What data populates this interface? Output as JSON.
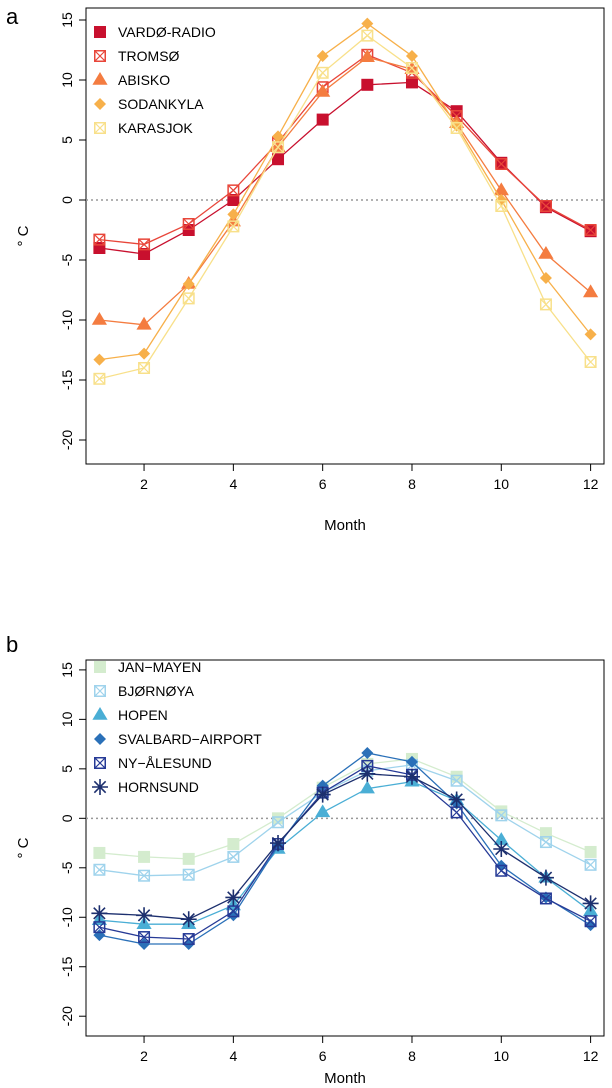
{
  "chart_data": [
    {
      "type": "line",
      "panel_label": "a",
      "xlabel": "Month",
      "ylabel": "° C",
      "xlim": [
        0.7,
        12.3
      ],
      "ylim": [
        -22,
        16
      ],
      "xticks": [
        2,
        4,
        6,
        8,
        10,
        12
      ],
      "yticks": [
        -20,
        -15,
        -10,
        -5,
        0,
        5,
        10,
        15
      ],
      "zero_line": {
        "y": 0,
        "style": "dotted",
        "color": "#999999"
      },
      "legend_position": "top-left",
      "x": [
        1,
        2,
        3,
        4,
        5,
        6,
        7,
        8,
        9,
        10,
        11,
        12
      ],
      "series": [
        {
          "name": "VARDØ-RADIO",
          "color": "#c8102e",
          "marker": "square",
          "values": [
            -4.0,
            -4.5,
            -2.5,
            0.0,
            3.4,
            6.7,
            9.6,
            9.8,
            7.4,
            3.1,
            -0.6,
            -2.6
          ]
        },
        {
          "name": "TROMSØ",
          "color": "#e8463a",
          "marker": "square-x",
          "values": [
            -3.3,
            -3.7,
            -2.0,
            0.8,
            4.8,
            9.4,
            12.1,
            10.6,
            7.0,
            3.0,
            -0.5,
            -2.5
          ]
        },
        {
          "name": "ABISKO",
          "color": "#f47c40",
          "marker": "triangle",
          "values": [
            -10.0,
            -10.4,
            -7.0,
            -1.8,
            4.4,
            9.0,
            11.9,
            10.9,
            6.4,
            0.8,
            -4.5,
            -7.7
          ]
        },
        {
          "name": "SODANKYLA",
          "color": "#f7b04a",
          "marker": "diamond",
          "values": [
            -13.3,
            -12.8,
            -7.0,
            -1.2,
            5.3,
            12.0,
            14.7,
            12.0,
            6.2,
            0.0,
            -6.5,
            -11.2
          ]
        },
        {
          "name": "KARASJOK",
          "color": "#f8e08a",
          "marker": "square-x",
          "values": [
            -14.9,
            -14.0,
            -8.2,
            -2.2,
            4.4,
            10.6,
            13.7,
            11.0,
            6.0,
            -0.5,
            -8.7,
            -13.5
          ]
        }
      ]
    },
    {
      "type": "line",
      "panel_label": "b",
      "xlabel": "Month",
      "ylabel": "° C",
      "xlim": [
        0.7,
        12.3
      ],
      "ylim": [
        -22,
        16
      ],
      "xticks": [
        2,
        4,
        6,
        8,
        10,
        12
      ],
      "yticks": [
        -20,
        -15,
        -10,
        -5,
        0,
        5,
        10,
        15
      ],
      "zero_line": {
        "y": 0,
        "style": "dotted",
        "color": "#999999"
      },
      "legend_position": "top-left",
      "x": [
        1,
        2,
        3,
        4,
        5,
        6,
        7,
        8,
        9,
        10,
        11,
        12
      ],
      "series": [
        {
          "name": "JAN−MAYEN",
          "color": "#d4ecce",
          "marker": "square",
          "values": [
            -3.5,
            -3.9,
            -4.1,
            -2.6,
            0.0,
            3.1,
            5.5,
            6.0,
            4.2,
            0.7,
            -1.5,
            -3.4
          ]
        },
        {
          "name": "BJØRNØYA",
          "color": "#9fd3ec",
          "marker": "square-x",
          "values": [
            -5.2,
            -5.8,
            -5.7,
            -3.9,
            -0.4,
            2.6,
            4.8,
            5.4,
            3.8,
            0.3,
            -2.4,
            -4.7
          ]
        },
        {
          "name": "HOPEN",
          "color": "#4aaed5",
          "marker": "triangle",
          "values": [
            -10.3,
            -10.7,
            -10.7,
            -8.8,
            -3.1,
            0.6,
            3.0,
            3.7,
            1.8,
            -2.2,
            -6.0,
            -9.4
          ]
        },
        {
          "name": "SVALBARD−AIRPORT",
          "color": "#2a70b8",
          "marker": "diamond",
          "values": [
            -11.8,
            -12.7,
            -12.7,
            -9.8,
            -2.8,
            3.3,
            6.6,
            5.7,
            1.5,
            -4.8,
            -8.0,
            -10.8
          ]
        },
        {
          "name": "NY−ÅLESUND",
          "color": "#263a96",
          "marker": "square-x",
          "values": [
            -11.0,
            -12.0,
            -12.2,
            -9.4,
            -2.6,
            2.6,
            5.3,
            4.4,
            0.6,
            -5.3,
            -8.1,
            -10.4
          ]
        },
        {
          "name": "HORNSUND",
          "color": "#1c2f6e",
          "marker": "star",
          "values": [
            -9.6,
            -9.8,
            -10.2,
            -8.0,
            -2.5,
            2.4,
            4.5,
            4.2,
            1.9,
            -3.1,
            -6.0,
            -8.6
          ]
        }
      ]
    }
  ]
}
